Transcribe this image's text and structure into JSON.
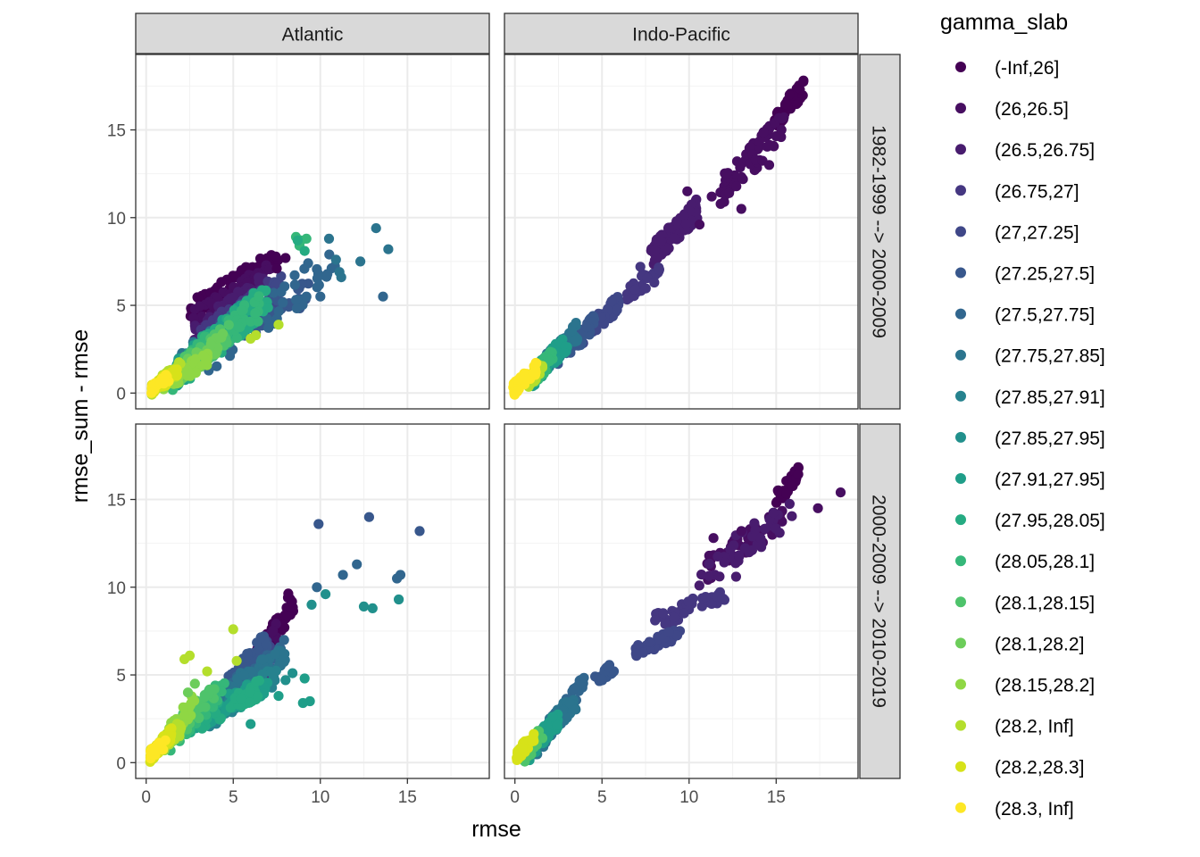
{
  "chart_data": {
    "type": "scatter",
    "xlabel": "rmse",
    "ylabel": "rmse_sum - rmse",
    "xlim": [
      -0.6,
      19.7
    ],
    "ylim": [
      -0.9,
      19.3
    ],
    "x_ticks": [
      0,
      5,
      10,
      15
    ],
    "y_ticks": [
      0,
      5,
      10,
      15
    ],
    "x_tick_labels": [
      "0",
      "5",
      "10",
      "15"
    ],
    "y_tick_labels": [
      "0",
      "5",
      "10",
      "15"
    ],
    "grid": true,
    "legend_position": "right",
    "column_facets": [
      "Atlantic",
      "Indo-Pacific"
    ],
    "row_facets": [
      "1982-1999 --> 2000-2009",
      "2000-2009 --> 2010-2019"
    ],
    "legend": {
      "title": "gamma_slab",
      "entries": [
        {
          "label": "(-Inf,26]",
          "color": "#440154"
        },
        {
          "label": "(26,26.5]",
          "color": "#470E61"
        },
        {
          "label": "(26.5,26.75]",
          "color": "#481C6E"
        },
        {
          "label": "(26.75,27]",
          "color": "#453781"
        },
        {
          "label": "(27,27.25]",
          "color": "#3F4788"
        },
        {
          "label": "(27.25,27.5]",
          "color": "#38578C"
        },
        {
          "label": "(27.5,27.75]",
          "color": "#31668E"
        },
        {
          "label": "(27.75,27.85]",
          "color": "#2B748E"
        },
        {
          "label": "(27.85,27.91]",
          "color": "#26828E"
        },
        {
          "label": "(27.85,27.95]",
          "color": "#21908C"
        },
        {
          "label": "(27.91,27.95]",
          "color": "#1F9E89"
        },
        {
          "label": "(27.95,28.05]",
          "color": "#25AB82"
        },
        {
          "label": "(28.05,28.1]",
          "color": "#35B779"
        },
        {
          "label": "(28.1,28.15]",
          "color": "#4EC36B"
        },
        {
          "label": "(28.1,28.2]",
          "color": "#6CCD5A"
        },
        {
          "label": "(28.15,28.2]",
          "color": "#8FD744"
        },
        {
          "label": "(28.2, Inf]",
          "color": "#B4DE2C"
        },
        {
          "label": "(28.2,28.3]",
          "color": "#D7E219"
        },
        {
          "label": "(28.3, Inf]",
          "color": "#FDE725"
        }
      ]
    },
    "panels": [
      {
        "column": "Atlantic",
        "row": "1982-1999 --> 2000-2009",
        "clusters": [
          {
            "group": 0,
            "x": [
              2.5,
              7.6
            ],
            "y": [
              4.6,
              7.6
            ],
            "n": 90
          },
          {
            "group": 1,
            "x": [
              2.6,
              7.2
            ],
            "y": [
              4.0,
              6.9
            ],
            "n": 70
          },
          {
            "group": 2,
            "x": [
              2.7,
              6.8
            ],
            "y": [
              3.3,
              6.2
            ],
            "n": 60
          },
          {
            "group": 3,
            "x": [
              2.8,
              7.5
            ],
            "y": [
              3.0,
              6.0
            ],
            "n": 60
          },
          {
            "group": 4,
            "x": [
              3.0,
              7.8
            ],
            "y": [
              2.7,
              6.0
            ],
            "n": 50
          },
          {
            "group": 5,
            "x": [
              3.2,
              9.5
            ],
            "y": [
              2.4,
              6.0
            ],
            "n": 50
          },
          {
            "group": 6,
            "x": [
              3.5,
              11.0
            ],
            "y": [
              2.2,
              7.6
            ],
            "n": 50
          },
          {
            "group": 7,
            "x": [
              1.7,
              6.5
            ],
            "y": [
              1.4,
              5.0
            ],
            "n": 70
          },
          {
            "group": 9,
            "x": [
              1.7,
              6.0
            ],
            "y": [
              1.1,
              4.5
            ],
            "n": 70
          },
          {
            "group": 10,
            "x": [
              1.6,
              6.0
            ],
            "y": [
              1.0,
              4.8
            ],
            "n": 70
          },
          {
            "group": 11,
            "x": [
              1.8,
              7.0
            ],
            "y": [
              1.1,
              5.5
            ],
            "n": 60
          },
          {
            "group": 12,
            "x": [
              1.5,
              6.5
            ],
            "y": [
              1.0,
              5.0
            ],
            "n": 60
          },
          {
            "group": 13,
            "x": [
              1.7,
              4.8
            ],
            "y": [
              1.1,
              3.5
            ],
            "n": 40
          },
          {
            "group": 14,
            "x": [
              1.6,
              4.5
            ],
            "y": [
              0.9,
              3.0
            ],
            "n": 40
          },
          {
            "group": 15,
            "x": [
              0.8,
              3.6
            ],
            "y": [
              0.4,
              2.0
            ],
            "n": 40
          },
          {
            "group": 16,
            "x": [
              0.3,
              2.0
            ],
            "y": [
              0.2,
              1.5
            ],
            "n": 45
          },
          {
            "group": 17,
            "x": [
              0.3,
              1.8
            ],
            "y": [
              0.2,
              1.2
            ],
            "n": 40
          },
          {
            "group": 18,
            "x": [
              0.3,
              1.3
            ],
            "y": [
              0.2,
              0.9
            ],
            "n": 25
          }
        ],
        "points": [
          {
            "group": 12,
            "x": [
              8.6,
              8.8,
              8.9,
              9.2
            ],
            "y": [
              8.9,
              8.4,
              8.7,
              8.8
            ]
          },
          {
            "group": 11,
            "x": [
              8.7,
              9.1
            ],
            "y": [
              8.7,
              8.1
            ]
          },
          {
            "group": 0,
            "x": [
              7.5,
              8.0
            ],
            "y": [
              7.1,
              7.7
            ]
          },
          {
            "group": 7,
            "x": [
              10.5,
              10.9,
              11.1,
              11.2,
              12.3,
              13.2,
              13.9
            ],
            "y": [
              8.8,
              7.6,
              6.9,
              6.6,
              7.5,
              9.4,
              8.2
            ]
          },
          {
            "group": 6,
            "x": [
              9.2,
              10.0,
              13.6
            ],
            "y": [
              5.5,
              5.5,
              5.5
            ]
          },
          {
            "group": 16,
            "x": [
              7.6,
              6.0,
              6.3
            ],
            "y": [
              3.9,
              3.1,
              3.3
            ]
          }
        ]
      },
      {
        "column": "Indo-Pacific",
        "row": "1982-1999 --> 2000-2009",
        "clusters": [
          {
            "group": 0,
            "x": [
              14.9,
              16.6
            ],
            "y": [
              15.4,
              17.5
            ],
            "n": 50
          },
          {
            "group": 1,
            "x": [
              11.8,
              15.5
            ],
            "y": [
              11.5,
              15.3
            ],
            "n": 60
          },
          {
            "group": 2,
            "x": [
              7.8,
              10.5
            ],
            "y": [
              7.8,
              10.5
            ],
            "n": 90
          },
          {
            "group": 3,
            "x": [
              6.3,
              8.3
            ],
            "y": [
              5.3,
              7.2
            ],
            "n": 30
          },
          {
            "group": 4,
            "x": [
              3.6,
              6.0
            ],
            "y": [
              3.0,
              5.2
            ],
            "n": 40
          },
          {
            "group": 5,
            "x": [
              2.3,
              4.6
            ],
            "y": [
              1.9,
              4.0
            ],
            "n": 60
          },
          {
            "group": 7,
            "x": [
              1.4,
              3.6
            ],
            "y": [
              1.2,
              3.6
            ],
            "n": 60
          },
          {
            "group": 10,
            "x": [
              1.0,
              3.0
            ],
            "y": [
              0.8,
              3.0
            ],
            "n": 50
          },
          {
            "group": 12,
            "x": [
              0.9,
              2.2
            ],
            "y": [
              0.6,
              2.2
            ],
            "n": 40
          },
          {
            "group": 16,
            "x": [
              0.6,
              1.6
            ],
            "y": [
              0.4,
              1.6
            ],
            "n": 30
          },
          {
            "group": 18,
            "x": [
              -0.1,
              1.3
            ],
            "y": [
              0.2,
              1.5
            ],
            "n": 35
          }
        ],
        "points": [
          {
            "group": 1,
            "x": [
              9.9,
              10.6,
              11.3,
              12.3,
              13.0,
              14.6,
              15.3
            ],
            "y": [
              11.5,
              9.6,
              11.2,
              11.4,
              10.5,
              13.0,
              15.0
            ]
          },
          {
            "group": 3,
            "x": [
              7.2,
              8.0,
              6.9
            ],
            "y": [
              7.2,
              6.3,
              5.9
            ]
          }
        ]
      },
      {
        "column": "Atlantic",
        "row": "2000-2009 --> 2010-2019",
        "clusters": [
          {
            "group": 0,
            "x": [
              6.0,
              8.5
            ],
            "y": [
              5.0,
              9.3
            ],
            "n": 60
          },
          {
            "group": 1,
            "x": [
              5.2,
              7.6
            ],
            "y": [
              4.0,
              7.5
            ],
            "n": 50
          },
          {
            "group": 2,
            "x": [
              3.2,
              7.0
            ],
            "y": [
              2.5,
              5.5
            ],
            "n": 60
          },
          {
            "group": 3,
            "x": [
              3.0,
              7.2
            ],
            "y": [
              2.4,
              5.0
            ],
            "n": 50
          },
          {
            "group": 4,
            "x": [
              4.2,
              7.2
            ],
            "y": [
              3.5,
              6.5
            ],
            "n": 50
          },
          {
            "group": 5,
            "x": [
              4.5,
              7.0
            ],
            "y": [
              4.0,
              7.0
            ],
            "n": 60
          },
          {
            "group": 6,
            "x": [
              4.5,
              8.0
            ],
            "y": [
              3.8,
              6.5
            ],
            "n": 50
          },
          {
            "group": 7,
            "x": [
              4.5,
              8.0
            ],
            "y": [
              4.0,
              6.2
            ],
            "n": 50
          },
          {
            "group": 8,
            "x": [
              3.5,
              7.5
            ],
            "y": [
              2.4,
              5.0
            ],
            "n": 50
          },
          {
            "group": 10,
            "x": [
              2.5,
              7.0
            ],
            "y": [
              2.2,
              4.5
            ],
            "n": 60
          },
          {
            "group": 11,
            "x": [
              2.5,
              6.5
            ],
            "y": [
              2.0,
              4.2
            ],
            "n": 50
          },
          {
            "group": 12,
            "x": [
              1.3,
              4.5
            ],
            "y": [
              1.3,
              4.5
            ],
            "n": 50
          },
          {
            "group": 13,
            "x": [
              1.5,
              4.0
            ],
            "y": [
              1.5,
              4.2
            ],
            "n": 40
          },
          {
            "group": 15,
            "x": [
              0.9,
              2.8
            ],
            "y": [
              1.0,
              3.5
            ],
            "n": 40
          },
          {
            "group": 16,
            "x": [
              0.3,
              2.0
            ],
            "y": [
              0.5,
              2.0
            ],
            "n": 50
          },
          {
            "group": 17,
            "x": [
              0.2,
              1.5
            ],
            "y": [
              0.4,
              1.7
            ],
            "n": 40
          },
          {
            "group": 18,
            "x": [
              0.2,
              1.2
            ],
            "y": [
              0.4,
              1.2
            ],
            "n": 25
          }
        ],
        "points": [
          {
            "group": 5,
            "x": [
              9.9,
              12.8,
              15.7
            ],
            "y": [
              13.6,
              14.0,
              13.2
            ]
          },
          {
            "group": 6,
            "x": [
              11.3,
              12.1,
              14.6,
              14.4,
              9.8
            ],
            "y": [
              10.7,
              11.3,
              10.7,
              10.5,
              10.0
            ]
          },
          {
            "group": 9,
            "x": [
              10.3,
              12.5,
              13.0,
              14.5,
              9.5,
              8.0,
              8.4
            ],
            "y": [
              9.6,
              8.9,
              8.8,
              9.3,
              9.0,
              4.7,
              5.1
            ]
          },
          {
            "group": 10,
            "x": [
              9.1,
              9.4,
              9.0,
              7.6,
              6.0
            ],
            "y": [
              4.8,
              3.5,
              3.4,
              3.8,
              2.2
            ]
          },
          {
            "group": 16,
            "x": [
              2.2,
              2.5,
              3.5,
              5.0,
              5.2
            ],
            "y": [
              5.9,
              6.1,
              5.2,
              7.6,
              5.8
            ]
          },
          {
            "group": 14,
            "x": [
              2.4,
              2.8
            ],
            "y": [
              4.0,
              4.5
            ]
          }
        ]
      },
      {
        "column": "Indo-Pacific",
        "row": "2000-2009 --> 2010-2019",
        "clusters": [
          {
            "group": 0,
            "x": [
              15.0,
              16.3
            ],
            "y": [
              15.0,
              16.5
            ],
            "n": 40
          },
          {
            "group": 1,
            "x": [
              11.0,
              15.5
            ],
            "y": [
              11.0,
              14.0
            ],
            "n": 50
          },
          {
            "group": 2,
            "x": [
              10.5,
              16.0
            ],
            "y": [
              10.5,
              14.5
            ],
            "n": 40
          },
          {
            "group": 3,
            "x": [
              8.0,
              12.2
            ],
            "y": [
              8.0,
              9.7
            ],
            "n": 40
          },
          {
            "group": 4,
            "x": [
              6.9,
              9.5
            ],
            "y": [
              6.3,
              7.4
            ],
            "n": 40
          },
          {
            "group": 5,
            "x": [
              4.6,
              5.8
            ],
            "y": [
              4.6,
              5.6
            ],
            "n": 20
          },
          {
            "group": 6,
            "x": [
              2.0,
              4.0
            ],
            "y": [
              1.9,
              4.5
            ],
            "n": 40
          },
          {
            "group": 7,
            "x": [
              1.2,
              3.5
            ],
            "y": [
              1.0,
              3.6
            ],
            "n": 50
          },
          {
            "group": 10,
            "x": [
              0.7,
              2.5
            ],
            "y": [
              0.5,
              2.5
            ],
            "n": 50
          },
          {
            "group": 13,
            "x": [
              0.5,
              1.6
            ],
            "y": [
              0.3,
              1.8
            ],
            "n": 30
          },
          {
            "group": 17,
            "x": [
              0.1,
              1.1
            ],
            "y": [
              0.4,
              1.5
            ],
            "n": 30
          }
        ],
        "points": [
          {
            "group": 1,
            "x": [
              11.4,
              13.0,
              17.4,
              18.7
            ],
            "y": [
              12.8,
              13.2,
              14.5,
              15.4
            ]
          },
          {
            "group": 2,
            "x": [
              12.7,
              14.1
            ],
            "y": [
              10.6,
              12.8
            ]
          }
        ]
      }
    ]
  }
}
